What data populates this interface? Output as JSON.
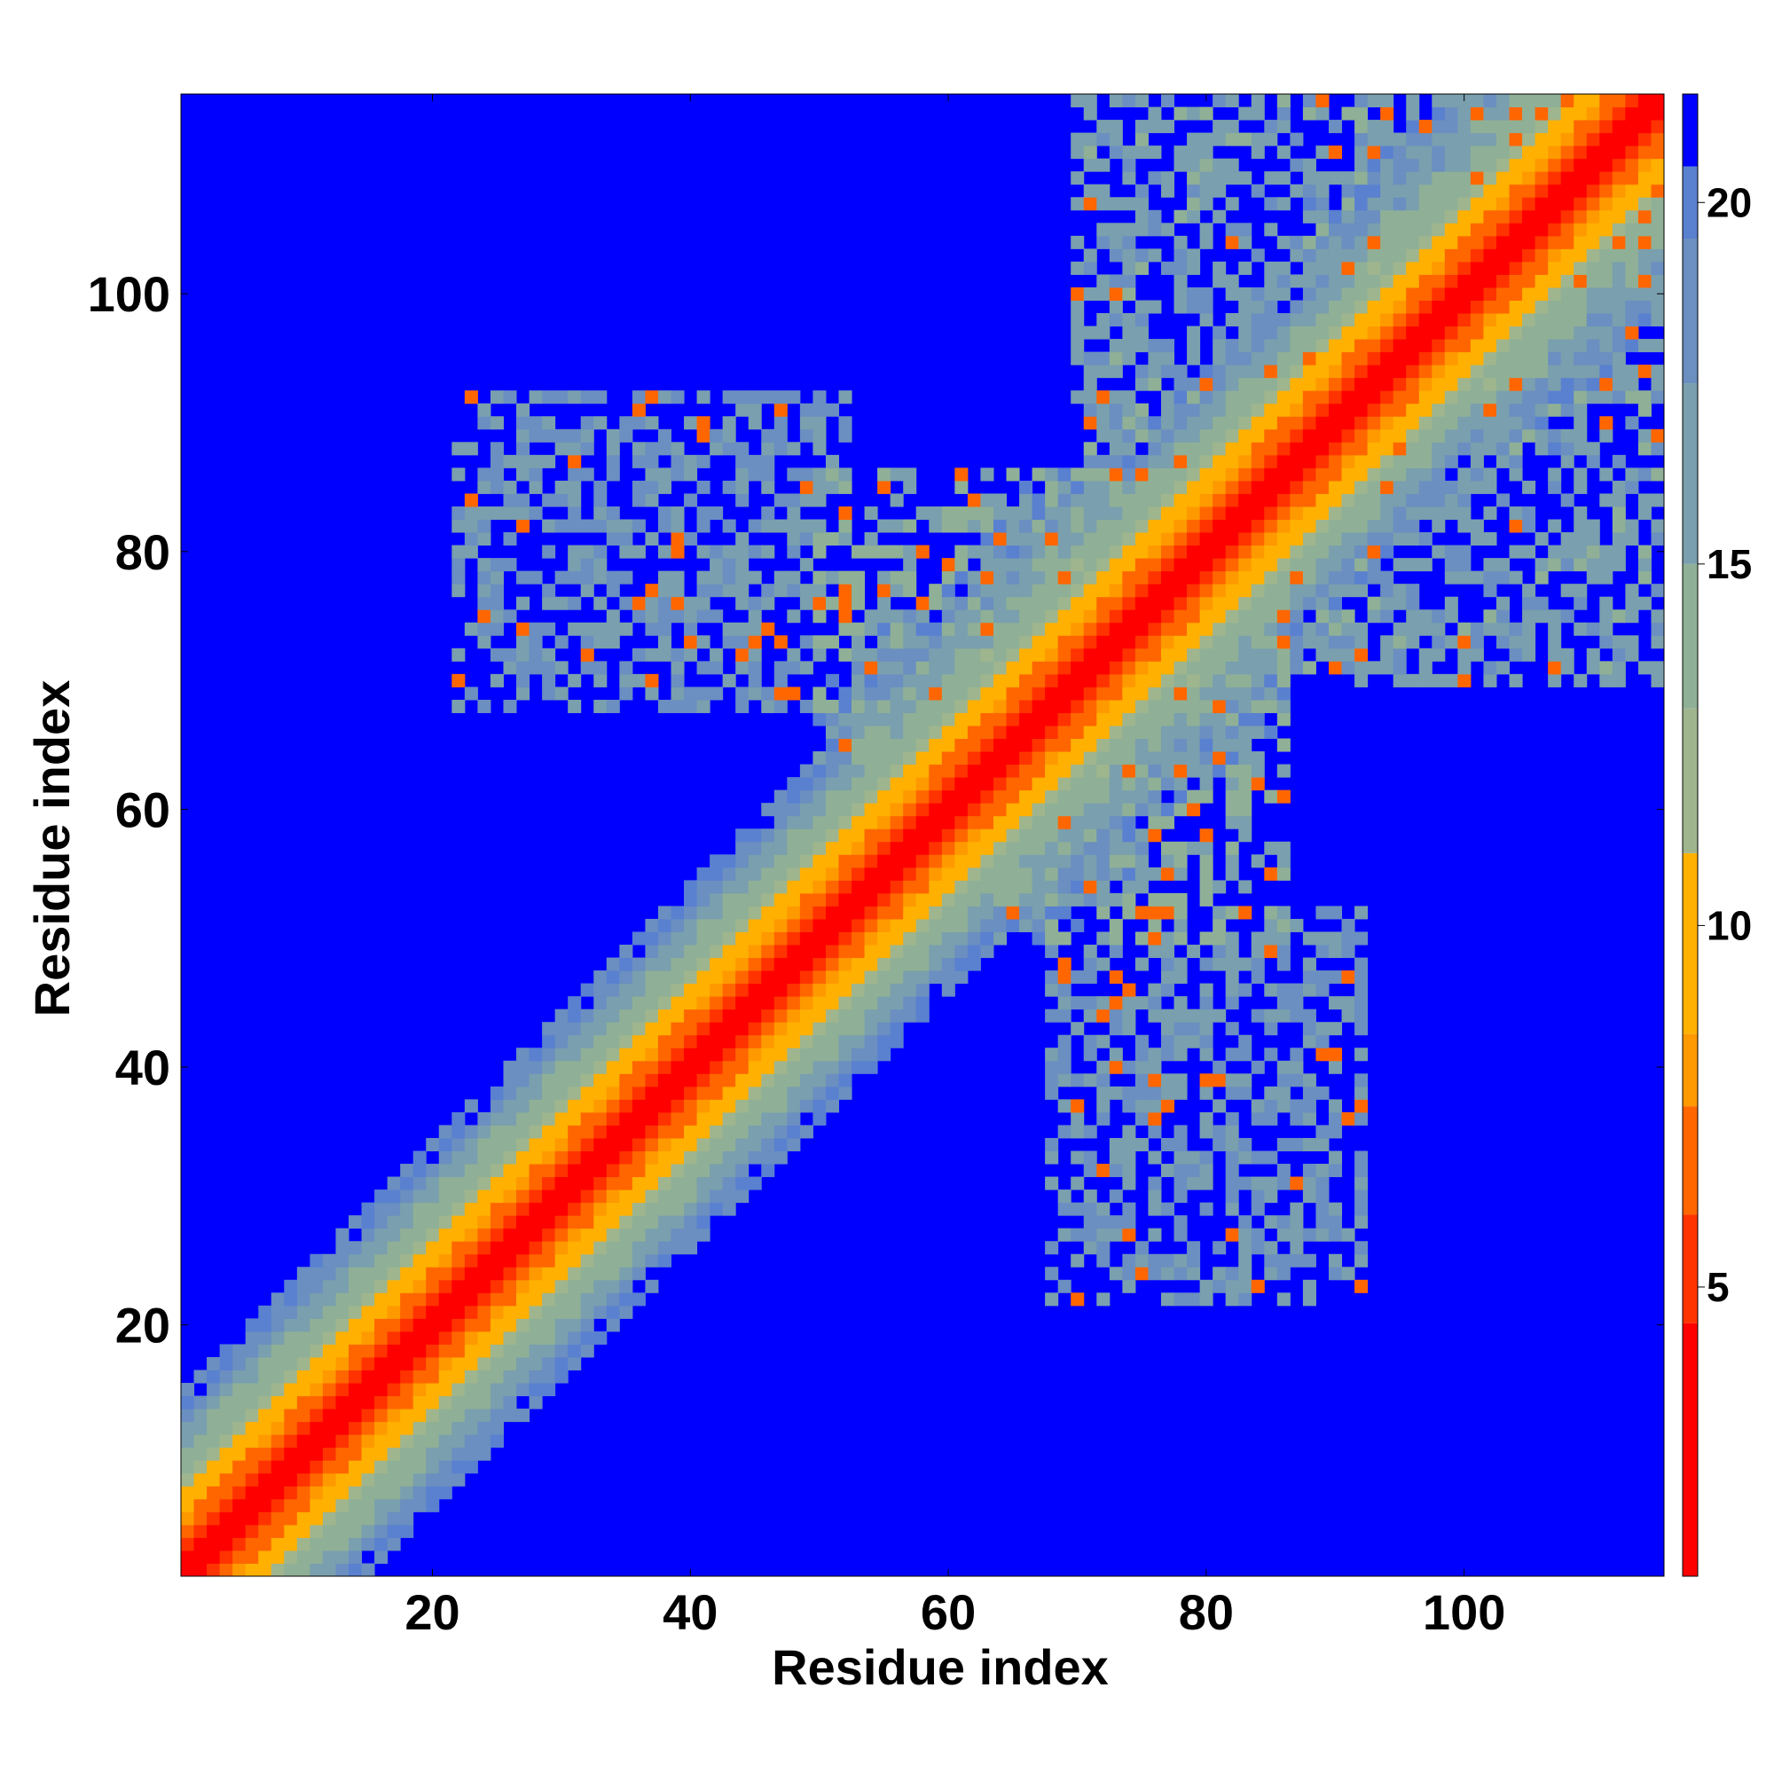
{
  "chart_data": {
    "type": "heatmap",
    "title": "",
    "xlabel": "Residue index",
    "ylabel": "Residue index",
    "n_residues": 115,
    "xlim": [
      1,
      115
    ],
    "ylim": [
      1,
      115
    ],
    "x_ticks": [
      20,
      40,
      60,
      80,
      100
    ],
    "y_ticks": [
      20,
      40,
      60,
      80,
      100
    ],
    "colorbar": {
      "range": [
        1,
        21.5
      ],
      "ticks": [
        5,
        10,
        15,
        20
      ],
      "colors": [
        "#ff0000",
        "#ff3300",
        "#ff6600",
        "#ff9900",
        "#ffb000",
        "#9fb58e",
        "#8fb096",
        "#7a9fae",
        "#6a8fc0",
        "#5a80d0",
        "#0000ff"
      ],
      "boundaries": [
        1,
        4.5,
        6,
        7.5,
        8.5,
        11,
        13,
        15,
        17.5,
        19.5,
        20.5,
        21.5
      ]
    },
    "values_description": "Pairwise residue distance map (symmetric). Low values along main diagonal, saturated (blue) far from diagonal.",
    "contact_clusters": [
      {
        "x": [
          22,
          42
        ],
        "y": [
          68,
          92
        ],
        "value": 17.5,
        "min_value": 7.0
      },
      {
        "x": [
          50,
          83
        ],
        "y": [
          54,
          86
        ],
        "value": 15.0,
        "min_value": 6.5
      },
      {
        "x": [
          68,
          92
        ],
        "y": [
          26,
          52
        ],
        "value": 17.5,
        "min_value": 7.0
      },
      {
        "x": [
          70,
          115
        ],
        "y": [
          74,
          115
        ],
        "value": 16.5,
        "min_value": 7.0
      },
      {
        "x": [
          88,
          115
        ],
        "y": [
          92,
          115
        ],
        "value": 17.0,
        "min_value": 8.0
      }
    ]
  },
  "colors": {
    "background": "#ffffff",
    "saturated": "#0000ff",
    "diagonal": "#ff0000"
  }
}
